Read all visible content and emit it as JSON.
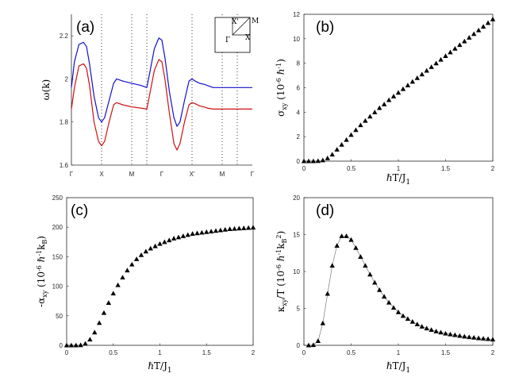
{
  "chart_data": [
    {
      "type": "line",
      "panel": "(a)",
      "ylabel": "ω(k)",
      "xlabel": "",
      "xticks": [
        "Γ",
        "X",
        "M",
        "Γ",
        "X'",
        "M",
        "Γ"
      ],
      "xlim": [
        0,
        6
      ],
      "ylim": [
        1.6,
        2.3
      ],
      "yticks": [
        "1.6",
        "1.8",
        "2",
        "2.2"
      ],
      "yticks_values": [
        1.6,
        1.8,
        2.0,
        2.2
      ],
      "series": [
        {
          "name": "upper band",
          "color": "#1010d0",
          "x": [
            0,
            0.1,
            0.25,
            0.4,
            0.5,
            0.6,
            0.75,
            0.9,
            1.0,
            1.1,
            1.25,
            1.4,
            1.5,
            1.7,
            2.0,
            2.3,
            2.5,
            2.5,
            2.6,
            2.75,
            2.9,
            3.0,
            3.1,
            3.25,
            3.4,
            3.5,
            3.6,
            3.75,
            3.9,
            4.0,
            4.1,
            4.25,
            4.4,
            4.5,
            4.7,
            5.0,
            5.3,
            5.5,
            5.5,
            5.7,
            6.0
          ],
          "y": [
            1.96,
            2.08,
            2.16,
            2.17,
            2.15,
            2.07,
            1.92,
            1.82,
            1.8,
            1.82,
            1.9,
            1.98,
            2.0,
            1.99,
            1.98,
            1.97,
            1.96,
            1.96,
            2.03,
            2.14,
            2.19,
            2.18,
            2.1,
            1.94,
            1.82,
            1.78,
            1.8,
            1.9,
            1.99,
            2.0,
            1.99,
            1.98,
            1.975,
            1.97,
            1.96,
            1.96,
            1.96,
            1.96,
            1.96,
            1.96,
            1.96
          ]
        },
        {
          "name": "lower band",
          "color": "#d01010",
          "x": [
            0,
            0.1,
            0.25,
            0.4,
            0.5,
            0.6,
            0.75,
            0.9,
            1.0,
            1.1,
            1.25,
            1.4,
            1.5,
            1.7,
            2.0,
            2.3,
            2.5,
            2.5,
            2.6,
            2.75,
            2.9,
            3.0,
            3.1,
            3.25,
            3.4,
            3.5,
            3.6,
            3.75,
            3.9,
            4.0,
            4.1,
            4.25,
            4.4,
            4.5,
            4.7,
            5.0,
            5.3,
            5.5,
            5.5,
            5.7,
            6.0
          ],
          "y": [
            1.86,
            1.96,
            2.06,
            2.07,
            2.05,
            1.97,
            1.8,
            1.71,
            1.69,
            1.71,
            1.8,
            1.88,
            1.89,
            1.88,
            1.87,
            1.865,
            1.86,
            1.86,
            1.93,
            2.04,
            2.09,
            2.08,
            2.0,
            1.84,
            1.7,
            1.67,
            1.7,
            1.8,
            1.88,
            1.89,
            1.885,
            1.875,
            1.87,
            1.865,
            1.86,
            1.86,
            1.86,
            1.86,
            1.86,
            1.86,
            1.86
          ]
        }
      ],
      "inset_labels": [
        "X'",
        "M",
        "X",
        "Γ"
      ]
    },
    {
      "type": "scatter",
      "panel": "(b)",
      "ylabel": "σxy (10⁻⁶ ℏ⁻¹)",
      "xlabel": "ℏT/J1",
      "xlim": [
        0,
        2
      ],
      "ylim": [
        0,
        12
      ],
      "xticks": [
        "0",
        "0.5",
        "1",
        "1.5",
        "2"
      ],
      "xticks_values": [
        0,
        0.5,
        1,
        1.5,
        2
      ],
      "yticks": [
        "0",
        "2",
        "4",
        "6",
        "8",
        "10",
        "12"
      ],
      "yticks_values": [
        0,
        2,
        4,
        6,
        8,
        10,
        12
      ],
      "x": [
        0,
        0.05,
        0.1,
        0.15,
        0.2,
        0.25,
        0.3,
        0.35,
        0.4,
        0.45,
        0.5,
        0.55,
        0.6,
        0.65,
        0.7,
        0.75,
        0.8,
        0.85,
        0.9,
        0.95,
        1.0,
        1.05,
        1.1,
        1.15,
        1.2,
        1.25,
        1.3,
        1.35,
        1.4,
        1.45,
        1.5,
        1.55,
        1.6,
        1.65,
        1.7,
        1.75,
        1.8,
        1.85,
        1.9,
        1.95,
        2.0
      ],
      "y": [
        0,
        0,
        0,
        0.02,
        0.08,
        0.25,
        0.55,
        0.95,
        1.35,
        1.75,
        2.15,
        2.55,
        2.95,
        3.3,
        3.65,
        4.0,
        4.35,
        4.65,
        5.0,
        5.3,
        5.6,
        5.9,
        6.2,
        6.5,
        6.8,
        7.1,
        7.4,
        7.7,
        8.0,
        8.3,
        8.6,
        8.9,
        9.2,
        9.5,
        9.8,
        10.1,
        10.4,
        10.7,
        11.0,
        11.3,
        11.6
      ]
    },
    {
      "type": "scatter",
      "panel": "(c)",
      "ylabel": "-αxy (10⁻⁶ ℏ⁻¹kB)",
      "xlabel": "ℏT/J1",
      "xlim": [
        0,
        2
      ],
      "ylim": [
        0,
        250
      ],
      "xticks": [
        "0",
        "0.5",
        "1",
        "1.5",
        "2"
      ],
      "xticks_values": [
        0,
        0.5,
        1,
        1.5,
        2
      ],
      "yticks": [
        "0",
        "50",
        "100",
        "150",
        "200",
        "250"
      ],
      "yticks_values": [
        0,
        50,
        100,
        150,
        200,
        250
      ],
      "x": [
        0,
        0.05,
        0.1,
        0.15,
        0.2,
        0.25,
        0.3,
        0.35,
        0.4,
        0.45,
        0.5,
        0.55,
        0.6,
        0.65,
        0.7,
        0.75,
        0.8,
        0.85,
        0.9,
        0.95,
        1.0,
        1.05,
        1.1,
        1.15,
        1.2,
        1.25,
        1.3,
        1.35,
        1.4,
        1.45,
        1.5,
        1.55,
        1.6,
        1.65,
        1.7,
        1.75,
        1.8,
        1.85,
        1.9,
        1.95,
        2.0
      ],
      "y": [
        0,
        0,
        0,
        0.5,
        3,
        10,
        22,
        38,
        55,
        72,
        88,
        102,
        115,
        127,
        137,
        146,
        153,
        159,
        164,
        168,
        172,
        175,
        178,
        181,
        183,
        185,
        187,
        189,
        190,
        191,
        192,
        193,
        194,
        195,
        196,
        197,
        197.5,
        198,
        198.5,
        199,
        199.5
      ]
    },
    {
      "type": "line",
      "panel": "(d)",
      "ylabel": "κxy/T (10⁻⁶ ℏ⁻¹kB²)",
      "xlabel": "ℏT/J1",
      "xlim": [
        0,
        2
      ],
      "ylim": [
        0,
        20
      ],
      "xticks": [
        "0",
        "0.5",
        "1",
        "1.5",
        "2"
      ],
      "xticks_values": [
        0,
        0.5,
        1,
        1.5,
        2
      ],
      "yticks": [
        "0",
        "5",
        "10",
        "15",
        "20"
      ],
      "yticks_values": [
        0,
        5,
        10,
        15,
        20
      ],
      "x": [
        0.05,
        0.1,
        0.15,
        0.2,
        0.25,
        0.3,
        0.35,
        0.4,
        0.45,
        0.5,
        0.55,
        0.6,
        0.65,
        0.7,
        0.75,
        0.8,
        0.85,
        0.9,
        0.95,
        1.0,
        1.05,
        1.1,
        1.15,
        1.2,
        1.25,
        1.3,
        1.35,
        1.4,
        1.45,
        1.5,
        1.55,
        1.6,
        1.65,
        1.7,
        1.75,
        1.8,
        1.85,
        1.9,
        1.95,
        2.0
      ],
      "y": [
        0,
        0.05,
        0.6,
        3.0,
        7.0,
        10.8,
        13.5,
        14.8,
        14.8,
        14.3,
        13.2,
        12.0,
        10.8,
        9.6,
        8.5,
        7.5,
        6.6,
        5.8,
        5.1,
        4.5,
        4.0,
        3.6,
        3.2,
        2.85,
        2.55,
        2.3,
        2.1,
        1.9,
        1.75,
        1.6,
        1.5,
        1.4,
        1.3,
        1.2,
        1.12,
        1.05,
        0.98,
        0.92,
        0.86,
        0.8
      ]
    }
  ]
}
